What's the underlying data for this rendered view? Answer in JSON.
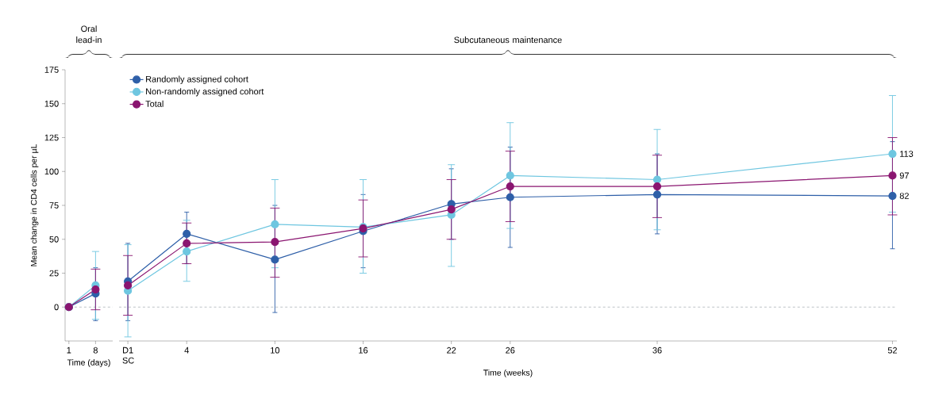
{
  "chart_data": [
    {
      "type": "line",
      "xlabel": "Time (days)",
      "ylabel": "Mean change in CD4 cells per µL",
      "annotations": [
        "Oral lead-in"
      ],
      "xlim": [
        0,
        12.5
      ],
      "xticks": [
        1,
        8
      ],
      "ylim": [
        -25,
        175
      ],
      "yticks": [
        0,
        25,
        50,
        75,
        100,
        125,
        150,
        175
      ],
      "marker": "circle",
      "line_style": "solid",
      "ref_lines": [
        {
          "axis": "y",
          "value": 0,
          "color": "#a0a8b0",
          "line_style": "dashed"
        }
      ],
      "series": [
        {
          "color": "#2e5fa8",
          "x": [
            1,
            8
          ],
          "values": [
            0,
            10
          ],
          "errors": [
            null,
            [
              -10,
              29
            ]
          ]
        },
        {
          "color": "#6ec6e0",
          "x": [
            1,
            8
          ],
          "values": [
            0,
            16
          ],
          "errors": [
            null,
            [
              -9,
              41
            ]
          ]
        },
        {
          "color": "#8a1570",
          "x": [
            1,
            8
          ],
          "values": [
            0,
            13
          ],
          "errors": [
            null,
            [
              -2,
              28
            ]
          ]
        }
      ]
    },
    {
      "type": "line",
      "xlabel": "Time (weeks)",
      "annotations": [
        "Subcutaneous maintenance"
      ],
      "xlim": [
        -0.6,
        52.3
      ],
      "xticks": [
        {
          "value": 0,
          "label": "D1 SC"
        },
        4,
        10,
        16,
        22,
        26,
        36,
        52
      ],
      "ylim": [
        -25,
        175
      ],
      "tick_labels": "x",
      "marker": "circle",
      "line_style": "solid",
      "legend": "top left",
      "ref_lines": [
        {
          "axis": "y",
          "value": 0,
          "color": "#a0a8b0",
          "line_style": "dashed"
        }
      ],
      "series": [
        {
          "name": "Randomly assigned cohort",
          "color": "#2e5fa8",
          "x": [
            0,
            4,
            10,
            16,
            22,
            26,
            36,
            52
          ],
          "values": [
            19,
            54,
            35,
            56,
            76,
            81,
            83,
            82
          ],
          "errors": [
            [
              -10,
              47
            ],
            [
              32,
              70
            ],
            [
              -4,
              75
            ],
            [
              29,
              83
            ],
            [
              50,
              102
            ],
            [
              44,
              118
            ],
            [
              54,
              113
            ],
            [
              43,
              122
            ]
          ],
          "value_labels": [
            null,
            null,
            null,
            null,
            null,
            null,
            null,
            "82"
          ]
        },
        {
          "name": "Non-randomly assigned cohort",
          "color": "#6ec6e0",
          "x": [
            0,
            4,
            10,
            16,
            22,
            26,
            36,
            52
          ],
          "values": [
            12,
            41,
            61,
            59,
            68,
            97,
            94,
            113
          ],
          "errors": [
            [
              -22,
              46
            ],
            [
              19,
              64
            ],
            [
              29,
              94
            ],
            [
              25,
              94
            ],
            [
              30,
              105
            ],
            [
              58,
              136
            ],
            [
              57,
              131
            ],
            [
              70,
              156
            ]
          ],
          "value_labels": [
            null,
            null,
            null,
            null,
            null,
            null,
            null,
            "113"
          ]
        },
        {
          "name": "Total",
          "color": "#8a1570",
          "x": [
            0,
            4,
            10,
            16,
            22,
            26,
            36,
            52
          ],
          "values": [
            16,
            47,
            48,
            58,
            72,
            89,
            89,
            97
          ],
          "errors": [
            [
              -6,
              38
            ],
            [
              32,
              62
            ],
            [
              22,
              73
            ],
            [
              37,
              79
            ],
            [
              50,
              94
            ],
            [
              63,
              115
            ],
            [
              66,
              112
            ],
            [
              68,
              125
            ]
          ],
          "value_labels": [
            null,
            null,
            null,
            null,
            null,
            null,
            null,
            "97"
          ]
        }
      ]
    }
  ]
}
